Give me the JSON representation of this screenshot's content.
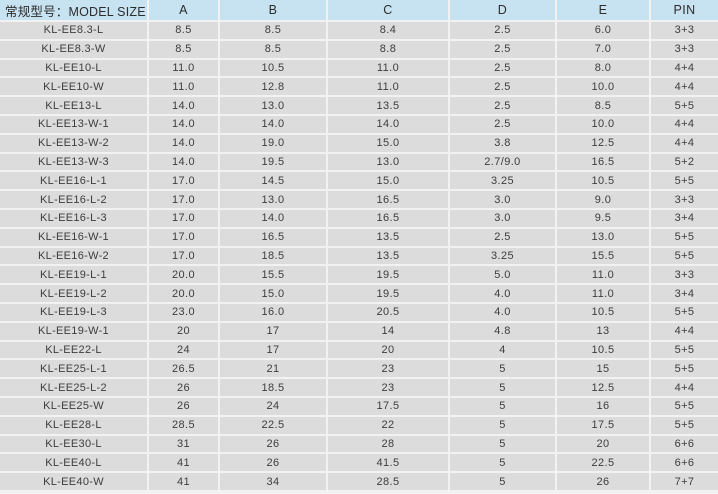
{
  "table": {
    "header": {
      "model_label": "常规型号：MODEL SIZE",
      "columns": [
        "A",
        "B",
        "C",
        "D",
        "E",
        "PIN"
      ]
    },
    "rows": [
      {
        "model": "KL-EE8.3-L",
        "values": [
          "8.5",
          "8.5",
          "8.4",
          "2.5",
          "6.0",
          "3+3"
        ]
      },
      {
        "model": "KL-EE8.3-W",
        "values": [
          "8.5",
          "8.5",
          "8.8",
          "2.5",
          "7.0",
          "3+3"
        ]
      },
      {
        "model": "KL-EE10-L",
        "values": [
          "11.0",
          "10.5",
          "11.0",
          "2.5",
          "8.0",
          "4+4"
        ]
      },
      {
        "model": "KL-EE10-W",
        "values": [
          "11.0",
          "12.8",
          "11.0",
          "2.5",
          "10.0",
          "4+4"
        ]
      },
      {
        "model": "KL-EE13-L",
        "values": [
          "14.0",
          "13.0",
          "13.5",
          "2.5",
          "8.5",
          "5+5"
        ]
      },
      {
        "model": "KL-EE13-W-1",
        "values": [
          "14.0",
          "14.0",
          "14.0",
          "2.5",
          "10.0",
          "4+4"
        ]
      },
      {
        "model": "KL-EE13-W-2",
        "values": [
          "14.0",
          "19.0",
          "15.0",
          "3.8",
          "12.5",
          "4+4"
        ]
      },
      {
        "model": "KL-EE13-W-3",
        "values": [
          "14.0",
          "19.5",
          "13.0",
          "2.7/9.0",
          "16.5",
          "5+2"
        ]
      },
      {
        "model": "KL-EE16-L-1",
        "values": [
          "17.0",
          "14.5",
          "15.0",
          "3.25",
          "10.5",
          "5+5"
        ]
      },
      {
        "model": "KL-EE16-L-2",
        "values": [
          "17.0",
          "13.0",
          "16.5",
          "3.0",
          "9.0",
          "3+3"
        ]
      },
      {
        "model": "KL-EE16-L-3",
        "values": [
          "17.0",
          "14.0",
          "16.5",
          "3.0",
          "9.5",
          "3+4"
        ]
      },
      {
        "model": "KL-EE16-W-1",
        "values": [
          "17.0",
          "16.5",
          "13.5",
          "2.5",
          "13.0",
          "5+5"
        ]
      },
      {
        "model": "KL-EE16-W-2",
        "values": [
          "17.0",
          "18.5",
          "13.5",
          "3.25",
          "15.5",
          "5+5"
        ]
      },
      {
        "model": "KL-EE19-L-1",
        "values": [
          "20.0",
          "15.5",
          "19.5",
          "5.0",
          "11.0",
          "3+3"
        ]
      },
      {
        "model": "KL-EE19-L-2",
        "values": [
          "20.0",
          "15.0",
          "19.5",
          "4.0",
          "11.0",
          "3+4"
        ]
      },
      {
        "model": "KL-EE19-L-3",
        "values": [
          "23.0",
          "16.0",
          "20.5",
          "4.0",
          "10.5",
          "5+5"
        ]
      },
      {
        "model": "KL-EE19-W-1",
        "values": [
          "20",
          "17",
          "14",
          "4.8",
          "13",
          "4+4"
        ]
      },
      {
        "model": "KL-EE22-L",
        "values": [
          "24",
          "17",
          "20",
          "4",
          "10.5",
          "5+5"
        ]
      },
      {
        "model": "KL-EE25-L-1",
        "values": [
          "26.5",
          "21",
          "23",
          "5",
          "15",
          "5+5"
        ]
      },
      {
        "model": "KL-EE25-L-2",
        "values": [
          "26",
          "18.5",
          "23",
          "5",
          "12.5",
          "4+4"
        ]
      },
      {
        "model": "KL-EE25-W",
        "values": [
          "26",
          "24",
          "17.5",
          "5",
          "16",
          "5+5"
        ]
      },
      {
        "model": "KL-EE28-L",
        "values": [
          "28.5",
          "22.5",
          "22",
          "5",
          "17.5",
          "5+5"
        ]
      },
      {
        "model": "KL-EE30-L",
        "values": [
          "31",
          "26",
          "28",
          "5",
          "20",
          "6+6"
        ]
      },
      {
        "model": "KL-EE40-L",
        "values": [
          "41",
          "26",
          "41.5",
          "5",
          "22.5",
          "6+6"
        ]
      },
      {
        "model": "KL-EE40-W",
        "values": [
          "41",
          "34",
          "28.5",
          "5",
          "26",
          "7+7"
        ]
      }
    ]
  },
  "colors": {
    "header_bg": "#c7e2f0",
    "row_bg": "#dcdcdc",
    "gap": "#f2f2f2",
    "text": "#3d3d3d",
    "header_text": "#2d2d2d"
  }
}
